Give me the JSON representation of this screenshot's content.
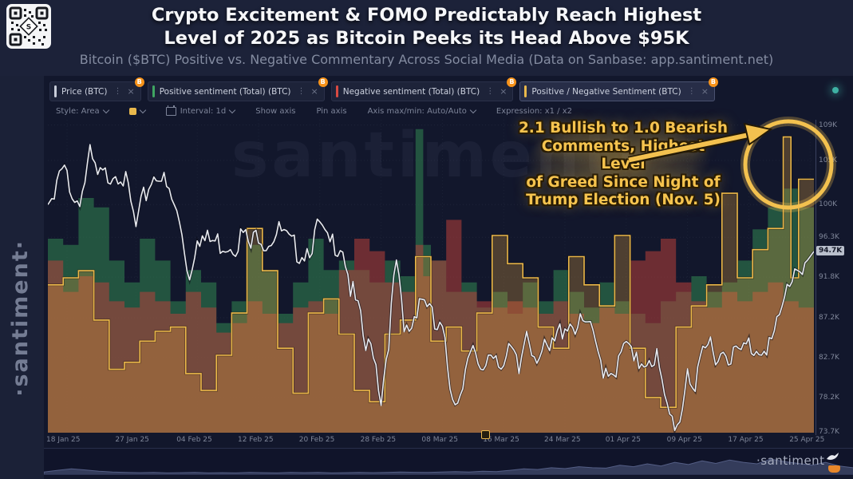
{
  "header": {
    "title_line1": "Crypto Excitement & FOMO Predictably Reach Highest",
    "title_line2": "Level of 2025 as Bitcoin Peeks its Head Above $95K",
    "subtitle": "Bitcoin ($BTC) Positive vs. Negative Commentary Across Social Media (Data on Sanbase: app.santiment.net)"
  },
  "watermarks": {
    "sidebar": "·santiment·",
    "chart_center": "santiment·",
    "footer": "·santiment"
  },
  "tabs": [
    {
      "label": "Price (BTC)",
      "accent": "#c8cdd9",
      "badge": "B",
      "active": false
    },
    {
      "label": "Positive sentiment (Total) (BTC)",
      "accent": "#3fa662",
      "badge": "B",
      "active": false
    },
    {
      "label": "Negative sentiment (Total) (BTC)",
      "accent": "#d94a42",
      "badge": "B",
      "active": false
    },
    {
      "label": "Positive / Negative Sentiment (BTC)",
      "accent": "#e9b84c",
      "badge": "B",
      "active": true
    }
  ],
  "toolbar": {
    "style": "Style: Area",
    "interval": "Interval: 1d",
    "show_axis": "Show axis",
    "pin_axis": "Pin axis",
    "axis_maxmin": "Axis max/min: Auto/Auto",
    "expression": "Expression: x1 / x2"
  },
  "annotation": {
    "lines": [
      "2.1 Bullish to 1.0 Bearish",
      "Comments, Highest Level",
      "of Greed Since Night of",
      "Trump Election (Nov. 5)"
    ],
    "color": "#f6c44f"
  },
  "chart_data": {
    "type": "area",
    "days": 100,
    "x_tick_labels": [
      "18 Jan 25",
      "27 Jan 25",
      "04 Feb 25",
      "12 Feb 25",
      "20 Feb 25",
      "28 Feb 25",
      "08 Mar 25",
      "16 Mar 25",
      "24 Mar 25",
      "01 Apr 25",
      "09 Apr 25",
      "17 Apr 25",
      "25 Apr 25"
    ],
    "x_tick_day_index": [
      2,
      11,
      19,
      27,
      35,
      43,
      51,
      59,
      67,
      75,
      83,
      91,
      99
    ],
    "y_axis": {
      "side": "right",
      "labels": [
        "109K",
        "105K",
        "100K",
        "96.3K",
        "91.8K",
        "87.2K",
        "82.7K",
        "78.2K",
        "73.7K"
      ],
      "values": [
        109,
        105,
        100,
        96.3,
        91.8,
        87.2,
        82.7,
        78.2,
        73.7
      ],
      "ylim": [
        74.2,
        109.6
      ],
      "current_price_badge": "94.7K",
      "current_price_value": 94.7
    },
    "series": [
      {
        "name": "Price (BTC)",
        "type": "line",
        "color": "#e8eaf0",
        "unit": "USD thousands",
        "values": [
          100.0,
          104.0,
          104.4,
          101.1,
          102.3,
          106.1,
          103.7,
          103.9,
          104.8,
          104.7,
          102.1,
          98.0,
          101.3,
          103.7,
          104.7,
          102.4,
          100.6,
          97.7,
          92.5,
          97.8,
          96.6,
          96.6,
          96.5,
          96.5,
          96.5,
          97.4,
          95.8,
          97.9,
          96.6,
          97.5,
          97.6,
          96.2,
          95.7,
          95.6,
          96.6,
          98.3,
          96.1,
          96.6,
          96.3,
          91.4,
          88.7,
          84.3,
          84.7,
          79.0,
          86.0,
          94.3,
          86.1,
          87.2,
          90.6,
          89.9,
          86.7,
          86.2,
          80.7,
          78.5,
          82.9,
          83.7,
          81.1,
          84.0,
          84.3,
          82.6,
          84.0,
          81.7,
          86.9,
          84.2,
          84.1,
          83.8,
          85.8,
          87.5,
          87.5,
          86.9,
          87.2,
          84.4,
          82.6,
          82.3,
          82.5,
          85.2,
          82.5,
          83.2,
          83.8,
          83.5,
          78.2,
          76.3,
          76.3,
          82.6,
          79.6,
          83.4,
          85.3,
          83.7,
          84.5,
          83.7,
          84.0,
          84.9,
          84.5,
          85.2,
          85.2,
          87.5,
          91.2,
          93.7,
          94.0,
          94.7
        ]
      },
      {
        "name": "Positive sentiment (Total) (BTC)",
        "type": "step-area",
        "color": "#2f7a4d",
        "unit": "relative height % (axis hidden)",
        "values": [
          62,
          62,
          60,
          60,
          75,
          75,
          72,
          72,
          55,
          55,
          48,
          48,
          62,
          62,
          55,
          55,
          42,
          42,
          52,
          52,
          48,
          48,
          35,
          35,
          42,
          42,
          60,
          60,
          52,
          52,
          38,
          38,
          48,
          48,
          62,
          62,
          52,
          52,
          55,
          55,
          52,
          52,
          48,
          48,
          55,
          55,
          50,
          50,
          97,
          60,
          55,
          55,
          45,
          45,
          48,
          48,
          40,
          40,
          45,
          45,
          38,
          38,
          48,
          48,
          42,
          42,
          52,
          52,
          45,
          45,
          40,
          40,
          48,
          48,
          42,
          42,
          38,
          38,
          35,
          35,
          42,
          42,
          45,
          45,
          50,
          50,
          45,
          45,
          48,
          48,
          55,
          55,
          65,
          65,
          72,
          72,
          78,
          78,
          72,
          72
        ]
      },
      {
        "name": "Negative sentiment (Total) (BTC)",
        "type": "step-area",
        "color": "#b8403a",
        "unit": "relative height % (axis hidden)",
        "values": [
          55,
          55,
          45,
          45,
          50,
          50,
          48,
          48,
          42,
          42,
          40,
          40,
          45,
          45,
          42,
          42,
          38,
          38,
          45,
          45,
          40,
          40,
          32,
          32,
          35,
          35,
          42,
          42,
          38,
          38,
          35,
          35,
          40,
          40,
          42,
          42,
          38,
          38,
          52,
          52,
          62,
          62,
          58,
          58,
          48,
          48,
          45,
          45,
          60,
          50,
          55,
          55,
          68,
          68,
          45,
          45,
          42,
          42,
          40,
          40,
          42,
          42,
          40,
          40,
          38,
          38,
          42,
          42,
          38,
          38,
          35,
          35,
          40,
          40,
          38,
          38,
          55,
          55,
          58,
          58,
          62,
          62,
          48,
          48,
          42,
          42,
          40,
          40,
          45,
          45,
          42,
          42,
          45,
          45,
          48,
          48,
          42,
          42,
          40,
          40
        ]
      },
      {
        "name": "Positive / Negative Sentiment (BTC)",
        "type": "step-line",
        "color": "#ecb84a",
        "unit": "ratio (x1 / x2)",
        "peak_annotated": 2.1,
        "values": [
          1.05,
          1.05,
          1.1,
          1.1,
          1.15,
          1.15,
          0.8,
          0.8,
          0.45,
          0.45,
          0.5,
          0.5,
          0.65,
          0.65,
          0.72,
          0.72,
          0.75,
          0.75,
          0.42,
          0.42,
          0.3,
          0.3,
          0.55,
          0.55,
          0.85,
          0.85,
          1.45,
          1.45,
          1.15,
          1.15,
          0.6,
          0.6,
          0.28,
          0.28,
          0.85,
          0.85,
          0.95,
          0.95,
          0.7,
          0.7,
          0.3,
          0.3,
          0.22,
          0.22,
          0.7,
          0.7,
          0.8,
          0.8,
          1.25,
          1.25,
          0.65,
          0.65,
          0.75,
          0.75,
          0.58,
          0.58,
          0.85,
          0.85,
          1.4,
          1.4,
          1.2,
          1.2,
          1.1,
          1.1,
          0.75,
          0.75,
          0.6,
          0.6,
          1.25,
          1.25,
          1.05,
          1.05,
          0.9,
          0.9,
          1.4,
          1.4,
          0.6,
          0.6,
          0.25,
          0.25,
          0.18,
          0.18,
          0.75,
          0.75,
          0.9,
          0.9,
          1.05,
          1.05,
          1.7,
          1.7,
          1.1,
          1.1,
          1.3,
          1.3,
          1.45,
          1.45,
          2.1,
          1.1,
          1.8,
          1.8
        ]
      }
    ],
    "ratio_to_height_fraction": 0.45,
    "grid": "faint dotted",
    "legend_position": "tabs-top",
    "overview_spark": [
      0.1,
      0.18,
      0.25,
      0.2,
      0.14,
      0.1,
      0.08,
      0.07,
      0.08,
      0.06,
      0.07,
      0.08,
      0.06,
      0.07,
      0.06,
      0.08,
      0.07,
      0.06,
      0.08,
      0.07,
      0.08,
      0.06,
      0.07,
      0.08,
      0.07,
      0.08,
      0.1,
      0.09,
      0.08,
      0.1,
      0.12,
      0.1,
      0.14,
      0.12,
      0.18,
      0.25,
      0.22,
      0.3,
      0.26,
      0.35,
      0.3,
      0.28,
      0.42,
      0.35,
      0.48,
      0.38,
      0.55,
      0.45,
      0.62,
      0.5,
      0.66,
      0.55,
      0.48,
      0.7,
      0.58,
      0.5,
      0.42,
      0.55,
      0.38,
      0.3
    ]
  }
}
